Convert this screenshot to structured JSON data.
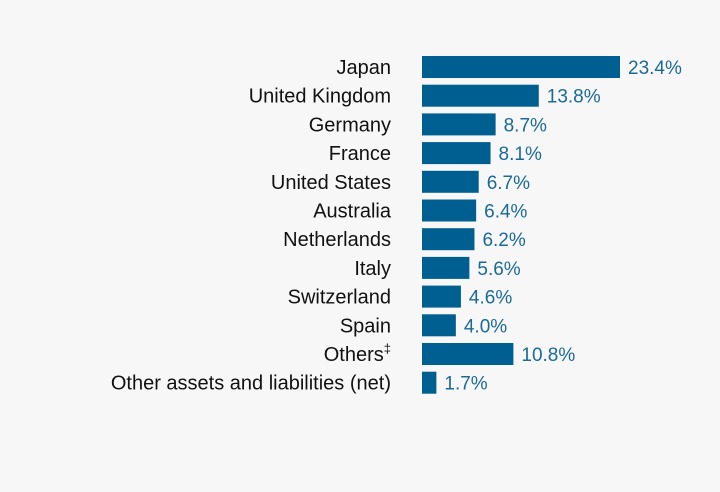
{
  "colors": {
    "background": "#f7f7f7",
    "bar": "#005f91",
    "category_text": "#111111",
    "value_text": "#1b6a95"
  },
  "chart_data": {
    "type": "bar",
    "orientation": "horizontal",
    "title": "",
    "xlabel": "",
    "ylabel": "",
    "grid": false,
    "legend": "none",
    "xlim": [
      0,
      23.4
    ],
    "categories": [
      "Japan",
      "United Kingdom",
      "Germany",
      "France",
      "United States",
      "Australia",
      "Netherlands",
      "Italy",
      "Switzerland",
      "Spain",
      "Others",
      "Other assets and liabilities (net)"
    ],
    "category_superscripts": [
      "",
      "",
      "",
      "",
      "",
      "",
      "",
      "",
      "",
      "",
      "‡",
      ""
    ],
    "values": [
      23.4,
      13.8,
      8.7,
      8.1,
      6.7,
      6.4,
      6.2,
      5.6,
      4.6,
      4.0,
      10.8,
      1.7
    ],
    "value_labels": [
      "23.4%",
      "13.8%",
      "8.7%",
      "8.1%",
      "6.7%",
      "6.4%",
      "6.2%",
      "5.6%",
      "4.6%",
      "4.0%",
      "10.8%",
      "1.7%"
    ]
  }
}
